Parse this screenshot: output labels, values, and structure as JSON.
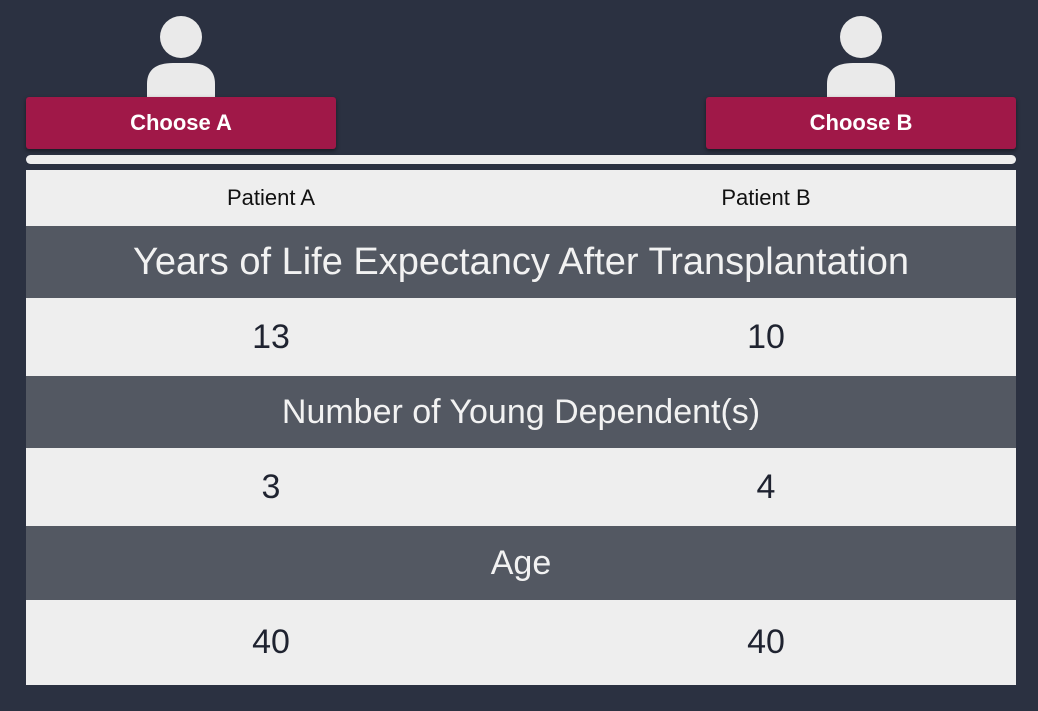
{
  "choices": {
    "a_label": "Choose A",
    "b_label": "Choose B"
  },
  "icons": {
    "patient_a": "person-icon",
    "patient_b": "person-icon"
  },
  "colors": {
    "background": "#2b3141",
    "button": "#a01848",
    "category_band": "#535862",
    "table": "#eeeeee"
  },
  "table": {
    "headers": [
      "Patient A",
      "Patient B"
    ],
    "rows": [
      {
        "category": "Years of Life Expectancy After Transplantation",
        "a": "13",
        "b": "10"
      },
      {
        "category": "Number of Young Dependent(s)",
        "a": "3",
        "b": "4"
      },
      {
        "category": "Age",
        "a": "40",
        "b": "40"
      }
    ]
  }
}
